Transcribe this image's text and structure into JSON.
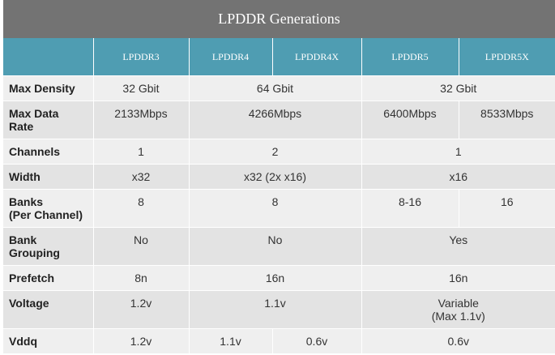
{
  "title": "LPDDR Generations",
  "headers": [
    "LPDDR3",
    "LPDDR4",
    "LPDDR4X",
    "LPDDR5",
    "LPDDR5X"
  ],
  "rows": {
    "max_density": {
      "label": "Max Density",
      "lpddr3": "32 Gbit",
      "lpddr4_4x": "64 Gbit",
      "lpddr5_5x": "32 Gbit"
    },
    "max_data_rate": {
      "label": "Max Data\nRate",
      "lpddr3": "2133Mbps",
      "lpddr4_4x": "4266Mbps",
      "lpddr5": "6400Mbps",
      "lpddr5x": "8533Mbps"
    },
    "channels": {
      "label": "Channels",
      "lpddr3": "1",
      "lpddr4_4x": "2",
      "lpddr5_5x": "1"
    },
    "width": {
      "label": "Width",
      "lpddr3": "x32",
      "lpddr4_4x": "x32 (2x x16)",
      "lpddr5_5x": "x16"
    },
    "banks": {
      "label": "Banks\n(Per Channel)",
      "lpddr3": "8",
      "lpddr4_4x": "8",
      "lpddr5": "8-16",
      "lpddr5x": "16"
    },
    "bank_grouping": {
      "label": "Bank\nGrouping",
      "lpddr3": "No",
      "lpddr4_4x": "No",
      "lpddr5_5x": "Yes"
    },
    "prefetch": {
      "label": "Prefetch",
      "lpddr3": "8n",
      "lpddr4_4x": "16n",
      "lpddr5_5x": "16n"
    },
    "voltage": {
      "label": "Voltage",
      "lpddr3": "1.2v",
      "lpddr4_4x": "1.1v",
      "lpddr5_5x": "Variable\n(Max 1.1v)"
    },
    "vddq": {
      "label": "Vddq",
      "lpddr3": "1.2v",
      "lpddr4": "1.1v",
      "lpddr4x": "0.6v",
      "lpddr5_5x": "0.6v"
    }
  }
}
